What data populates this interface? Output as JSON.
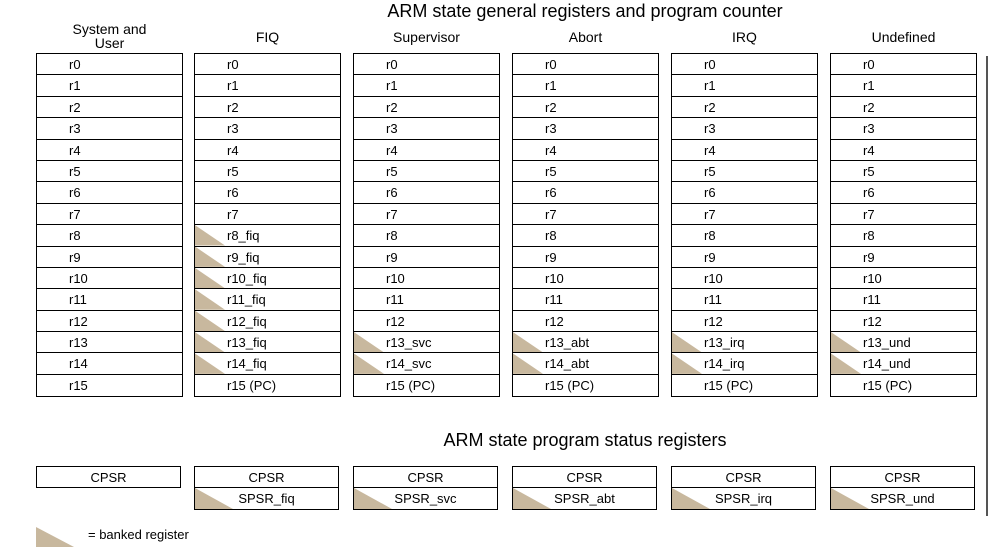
{
  "titles": {
    "general": "ARM state general registers and program counter",
    "psr": "ARM state program status registers"
  },
  "modes": [
    {
      "name": "System and\nUser",
      "registers": [
        {
          "label": "r0",
          "banked": false
        },
        {
          "label": "r1",
          "banked": false
        },
        {
          "label": "r2",
          "banked": false
        },
        {
          "label": "r3",
          "banked": false
        },
        {
          "label": "r4",
          "banked": false
        },
        {
          "label": "r5",
          "banked": false
        },
        {
          "label": "r6",
          "banked": false
        },
        {
          "label": "r7",
          "banked": false
        },
        {
          "label": "r8",
          "banked": false
        },
        {
          "label": "r9",
          "banked": false
        },
        {
          "label": "r10",
          "banked": false
        },
        {
          "label": "r11",
          "banked": false
        },
        {
          "label": "r12",
          "banked": false
        },
        {
          "label": "r13",
          "banked": false
        },
        {
          "label": "r14",
          "banked": false
        },
        {
          "label": "r15",
          "banked": false
        }
      ],
      "psr": [
        {
          "label": "CPSR",
          "banked": false
        }
      ]
    },
    {
      "name": "FIQ",
      "registers": [
        {
          "label": "r0",
          "banked": false
        },
        {
          "label": "r1",
          "banked": false
        },
        {
          "label": "r2",
          "banked": false
        },
        {
          "label": "r3",
          "banked": false
        },
        {
          "label": "r4",
          "banked": false
        },
        {
          "label": "r5",
          "banked": false
        },
        {
          "label": "r6",
          "banked": false
        },
        {
          "label": "r7",
          "banked": false
        },
        {
          "label": "r8_fiq",
          "banked": true
        },
        {
          "label": "r9_fiq",
          "banked": true
        },
        {
          "label": "r10_fiq",
          "banked": true
        },
        {
          "label": "r11_fiq",
          "banked": true
        },
        {
          "label": "r12_fiq",
          "banked": true
        },
        {
          "label": "r13_fiq",
          "banked": true
        },
        {
          "label": "r14_fiq",
          "banked": true
        },
        {
          "label": "r15 (PC)",
          "banked": false
        }
      ],
      "psr": [
        {
          "label": "CPSR",
          "banked": false
        },
        {
          "label": "SPSR_fiq",
          "banked": true
        }
      ]
    },
    {
      "name": "Supervisor",
      "registers": [
        {
          "label": "r0",
          "banked": false
        },
        {
          "label": "r1",
          "banked": false
        },
        {
          "label": "r2",
          "banked": false
        },
        {
          "label": "r3",
          "banked": false
        },
        {
          "label": "r4",
          "banked": false
        },
        {
          "label": "r5",
          "banked": false
        },
        {
          "label": "r6",
          "banked": false
        },
        {
          "label": "r7",
          "banked": false
        },
        {
          "label": "r8",
          "banked": false
        },
        {
          "label": "r9",
          "banked": false
        },
        {
          "label": "r10",
          "banked": false
        },
        {
          "label": "r11",
          "banked": false
        },
        {
          "label": "r12",
          "banked": false
        },
        {
          "label": "r13_svc",
          "banked": true
        },
        {
          "label": "r14_svc",
          "banked": true
        },
        {
          "label": "r15 (PC)",
          "banked": false
        }
      ],
      "psr": [
        {
          "label": "CPSR",
          "banked": false
        },
        {
          "label": "SPSR_svc",
          "banked": true
        }
      ]
    },
    {
      "name": "Abort",
      "registers": [
        {
          "label": "r0",
          "banked": false
        },
        {
          "label": "r1",
          "banked": false
        },
        {
          "label": "r2",
          "banked": false
        },
        {
          "label": "r3",
          "banked": false
        },
        {
          "label": "r4",
          "banked": false
        },
        {
          "label": "r5",
          "banked": false
        },
        {
          "label": "r6",
          "banked": false
        },
        {
          "label": "r7",
          "banked": false
        },
        {
          "label": "r8",
          "banked": false
        },
        {
          "label": "r9",
          "banked": false
        },
        {
          "label": "r10",
          "banked": false
        },
        {
          "label": "r11",
          "banked": false
        },
        {
          "label": "r12",
          "banked": false
        },
        {
          "label": "r13_abt",
          "banked": true
        },
        {
          "label": "r14_abt",
          "banked": true
        },
        {
          "label": "r15 (PC)",
          "banked": false
        }
      ],
      "psr": [
        {
          "label": "CPSR",
          "banked": false
        },
        {
          "label": "SPSR_abt",
          "banked": true
        }
      ]
    },
    {
      "name": "IRQ",
      "registers": [
        {
          "label": "r0",
          "banked": false
        },
        {
          "label": "r1",
          "banked": false
        },
        {
          "label": "r2",
          "banked": false
        },
        {
          "label": "r3",
          "banked": false
        },
        {
          "label": "r4",
          "banked": false
        },
        {
          "label": "r5",
          "banked": false
        },
        {
          "label": "r6",
          "banked": false
        },
        {
          "label": "r7",
          "banked": false
        },
        {
          "label": "r8",
          "banked": false
        },
        {
          "label": "r9",
          "banked": false
        },
        {
          "label": "r10",
          "banked": false
        },
        {
          "label": "r11",
          "banked": false
        },
        {
          "label": "r12",
          "banked": false
        },
        {
          "label": "r13_irq",
          "banked": true
        },
        {
          "label": "r14_irq",
          "banked": true
        },
        {
          "label": "r15 (PC)",
          "banked": false
        }
      ],
      "psr": [
        {
          "label": "CPSR",
          "banked": false
        },
        {
          "label": "SPSR_irq",
          "banked": true
        }
      ]
    },
    {
      "name": "Undefined",
      "registers": [
        {
          "label": "r0",
          "banked": false
        },
        {
          "label": "r1",
          "banked": false
        },
        {
          "label": "r2",
          "banked": false
        },
        {
          "label": "r3",
          "banked": false
        },
        {
          "label": "r4",
          "banked": false
        },
        {
          "label": "r5",
          "banked": false
        },
        {
          "label": "r6",
          "banked": false
        },
        {
          "label": "r7",
          "banked": false
        },
        {
          "label": "r8",
          "banked": false
        },
        {
          "label": "r9",
          "banked": false
        },
        {
          "label": "r10",
          "banked": false
        },
        {
          "label": "r11",
          "banked": false
        },
        {
          "label": "r12",
          "banked": false
        },
        {
          "label": "r13_und",
          "banked": true
        },
        {
          "label": "r14_und",
          "banked": true
        },
        {
          "label": "r15 (PC)",
          "banked": false
        }
      ],
      "psr": [
        {
          "label": "CPSR",
          "banked": false
        },
        {
          "label": "SPSR_und",
          "banked": true
        }
      ]
    }
  ],
  "legend": {
    "text": "= banked register"
  },
  "colors": {
    "banked": "#c8b89e",
    "border": "#000000"
  }
}
